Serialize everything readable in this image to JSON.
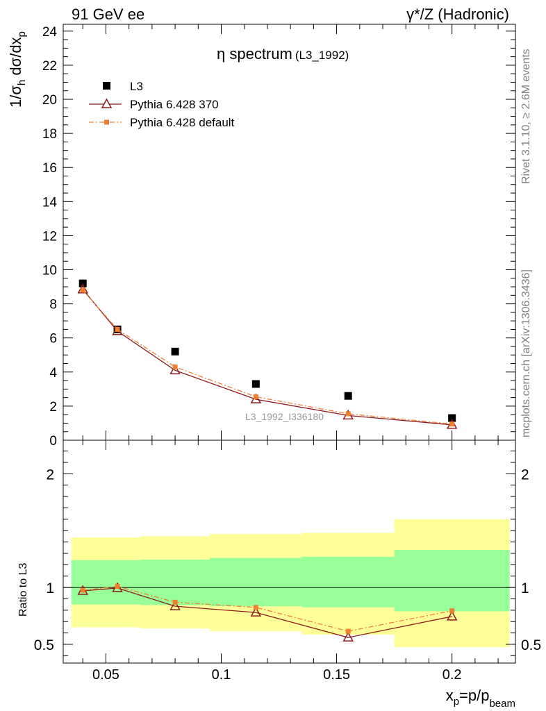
{
  "header": {
    "left": "91 GeV ee",
    "right": "γ*/Z (Hadronic)"
  },
  "side_labels": {
    "rivet": "Rivet 3.1.10, ≥ 2.6M events",
    "mcplots": "mcplots.cern.ch [arXiv:1306.3436]"
  },
  "chart_data": {
    "type": "line",
    "title": "η spectrum",
    "subtitle": "(L3_1992)",
    "watermark": "L3_1992_I336180",
    "xlabel": "x_p=p/p_beam",
    "ylabel": "1/σ_h dσ/dx_p",
    "ratio_ylabel": "Ratio to L3",
    "xlim": [
      0.0315,
      0.2275
    ],
    "ylim": [
      0,
      24.4
    ],
    "ratio_ylim": [
      0.335,
      2.295
    ],
    "x_ticks": [
      0.05,
      0.1,
      0.15,
      0.2
    ],
    "x_tick_labels": [
      "0.05",
      "0.1",
      "0.15",
      "0.2"
    ],
    "y_ticks": [
      0,
      2,
      4,
      6,
      8,
      10,
      12,
      14,
      16,
      18,
      20,
      22,
      24
    ],
    "y_tick_labels": [
      "0",
      "2",
      "4",
      "6",
      "8",
      "10",
      "12",
      "14",
      "16",
      "18",
      "20",
      "22",
      "24"
    ],
    "ratio_ticks": [
      0.5,
      1,
      2
    ],
    "ratio_tick_labels": [
      "0.5",
      "1",
      "2"
    ],
    "legend_position": "top-left",
    "grid": false,
    "x": [
      0.04,
      0.055,
      0.08,
      0.115,
      0.155,
      0.2
    ],
    "series": [
      {
        "name": "L3",
        "role": "data",
        "marker": "filled-square",
        "color": "#000000",
        "values": [
          9.2,
          6.5,
          5.2,
          3.3,
          2.6,
          1.3
        ],
        "ratio": [
          1,
          1,
          1,
          1,
          1,
          1
        ]
      },
      {
        "name": "Pythia 6.428 370",
        "role": "mc",
        "marker": "open-triangle",
        "line": "solid",
        "color": "#8b1a1a",
        "values": [
          8.85,
          6.4,
          4.1,
          2.4,
          1.45,
          0.9
        ],
        "ratio": [
          0.97,
          0.995,
          0.835,
          0.78,
          0.56,
          0.745
        ]
      },
      {
        "name": "Pythia 6.428 default",
        "role": "mc",
        "marker": "filled-square-small",
        "line": "dashdot",
        "color": "#f08030",
        "values": [
          8.8,
          6.5,
          4.3,
          2.55,
          1.55,
          0.95
        ],
        "ratio": [
          0.975,
          1.01,
          0.87,
          0.825,
          0.615,
          0.795
        ]
      }
    ],
    "uncertainty_bands": {
      "bin_edges": [
        0.035,
        0.065,
        0.095,
        0.135,
        0.175,
        0.225
      ],
      "stat_color": "#99ff99",
      "total_color": "#ffff99",
      "stat": [
        [
          0.85,
          1.24
        ],
        [
          0.845,
          1.245
        ],
        [
          0.835,
          1.26
        ],
        [
          0.825,
          1.27
        ],
        [
          0.79,
          1.33
        ]
      ],
      "total": [
        [
          0.65,
          1.44
        ],
        [
          0.64,
          1.45
        ],
        [
          0.615,
          1.47
        ],
        [
          0.585,
          1.48
        ],
        [
          0.475,
          1.6
        ]
      ]
    }
  }
}
